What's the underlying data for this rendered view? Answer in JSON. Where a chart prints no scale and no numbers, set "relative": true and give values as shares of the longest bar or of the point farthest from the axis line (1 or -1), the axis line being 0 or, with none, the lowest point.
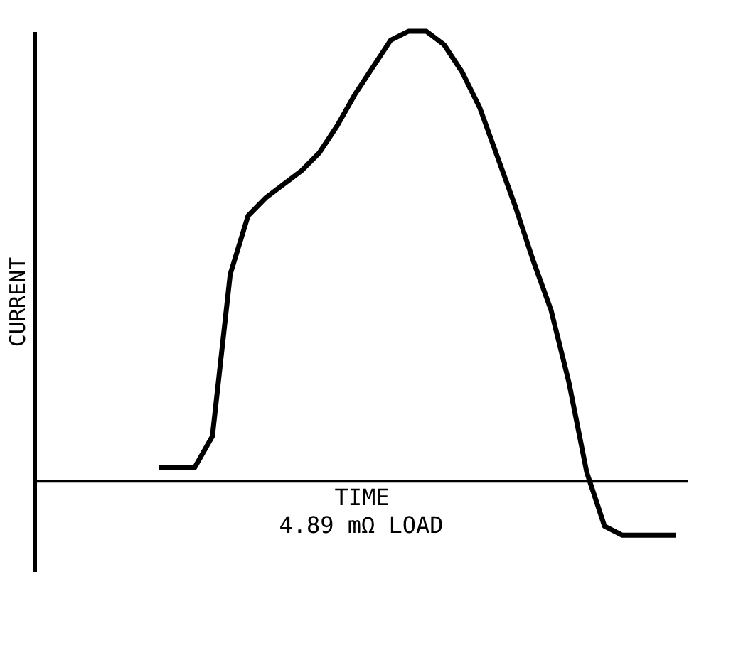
{
  "chart_data": {
    "type": "line",
    "relative": true,
    "xlabel": "TIME",
    "ylabel": "CURRENT",
    "annotations": [
      "4.89 mΩ LOAD"
    ],
    "categories": [
      null,
      null,
      null,
      null,
      null,
      null,
      null,
      null,
      null,
      null,
      null,
      null,
      null,
      null,
      null,
      null,
      null,
      null,
      null,
      null,
      null,
      null,
      null,
      null,
      null,
      null,
      null,
      null,
      null,
      null,
      null,
      null,
      null,
      null,
      null,
      null,
      null
    ],
    "series": [
      {
        "color": "#000000",
        "values": [
          null,
          null,
          null,
          null,
          null,
          null,
          null,
          0.03,
          0.03,
          0.03,
          0.1,
          0.46,
          0.59,
          0.63,
          0.66,
          0.69,
          0.73,
          0.79,
          0.86,
          0.92,
          0.98,
          1,
          1,
          0.97,
          0.91,
          0.83,
          0.72,
          0.61,
          0.49,
          0.38,
          0.22,
          0.02,
          -0.1,
          -0.12,
          -0.12,
          -0.12,
          -0.12
        ]
      }
    ],
    "marker": "none",
    "legend": false,
    "grid": false
  }
}
